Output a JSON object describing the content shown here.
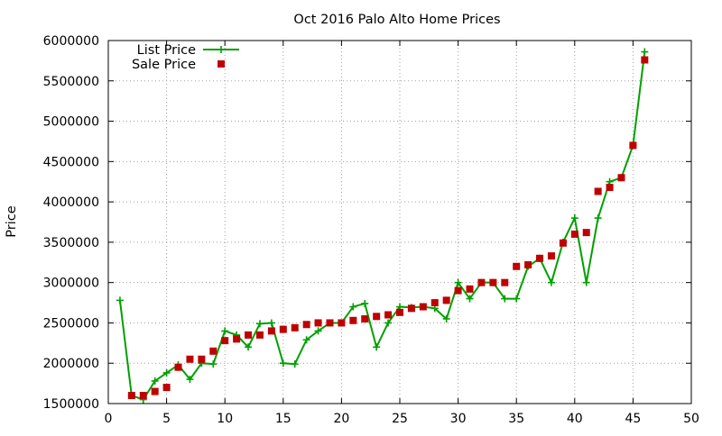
{
  "chart_data": {
    "type": "line",
    "title": "Oct 2016 Palo Alto Home Prices",
    "xlabel": "",
    "ylabel": "Price",
    "xlim": [
      0,
      50
    ],
    "ylim": [
      1500000,
      6000000
    ],
    "xticks": [
      0,
      5,
      10,
      15,
      20,
      25,
      30,
      35,
      40,
      45,
      50
    ],
    "yticks": [
      1500000,
      2000000,
      2500000,
      3000000,
      3500000,
      4000000,
      4500000,
      5000000,
      5500000,
      6000000
    ],
    "grid": true,
    "legend": "top-left",
    "series": [
      {
        "name": "List Price",
        "style": "linespoints",
        "color": "#00a000",
        "x": [
          1,
          2,
          3,
          4,
          5,
          6,
          7,
          8,
          9,
          10,
          11,
          12,
          13,
          14,
          15,
          16,
          17,
          18,
          19,
          20,
          21,
          22,
          23,
          24,
          25,
          26,
          27,
          28,
          29,
          30,
          31,
          32,
          33,
          34,
          35,
          36,
          37,
          38,
          39,
          40,
          41,
          42,
          43,
          44,
          45,
          46
        ],
        "values": [
          2780000,
          1600000,
          1550000,
          1780000,
          1880000,
          1980000,
          1800000,
          2000000,
          1990000,
          2400000,
          2350000,
          2200000,
          2490000,
          2500000,
          2000000,
          1990000,
          2290000,
          2400000,
          2500000,
          2500000,
          2700000,
          2740000,
          2200000,
          2500000,
          2700000,
          2690000,
          2700000,
          2680000,
          2550000,
          3000000,
          2800000,
          3000000,
          3000000,
          2800000,
          2800000,
          3200000,
          3300000,
          3000000,
          3500000,
          3800000,
          3000000,
          3800000,
          4250000,
          4300000,
          4700000,
          5860000
        ]
      },
      {
        "name": "Sale Price",
        "style": "points",
        "color": "#c00000",
        "x": [
          2,
          3,
          4,
          5,
          6,
          7,
          8,
          9,
          10,
          11,
          12,
          13,
          14,
          15,
          16,
          17,
          18,
          19,
          20,
          21,
          22,
          23,
          24,
          25,
          26,
          27,
          28,
          29,
          30,
          31,
          32,
          33,
          34,
          35,
          36,
          37,
          38,
          39,
          40,
          41,
          42,
          43,
          44,
          45,
          46
        ],
        "values": [
          1600000,
          1600000,
          1650000,
          1700000,
          1950000,
          2050000,
          2050000,
          2150000,
          2280000,
          2300000,
          2350000,
          2350000,
          2400000,
          2420000,
          2440000,
          2480000,
          2500000,
          2500000,
          2500000,
          2530000,
          2550000,
          2580000,
          2600000,
          2630000,
          2680000,
          2700000,
          2750000,
          2780000,
          2900000,
          2920000,
          3000000,
          3000000,
          3000000,
          3200000,
          3220000,
          3300000,
          3330000,
          3490000,
          3600000,
          3620000,
          4130000,
          4180000,
          4300000,
          4700000,
          5760000
        ]
      }
    ]
  }
}
